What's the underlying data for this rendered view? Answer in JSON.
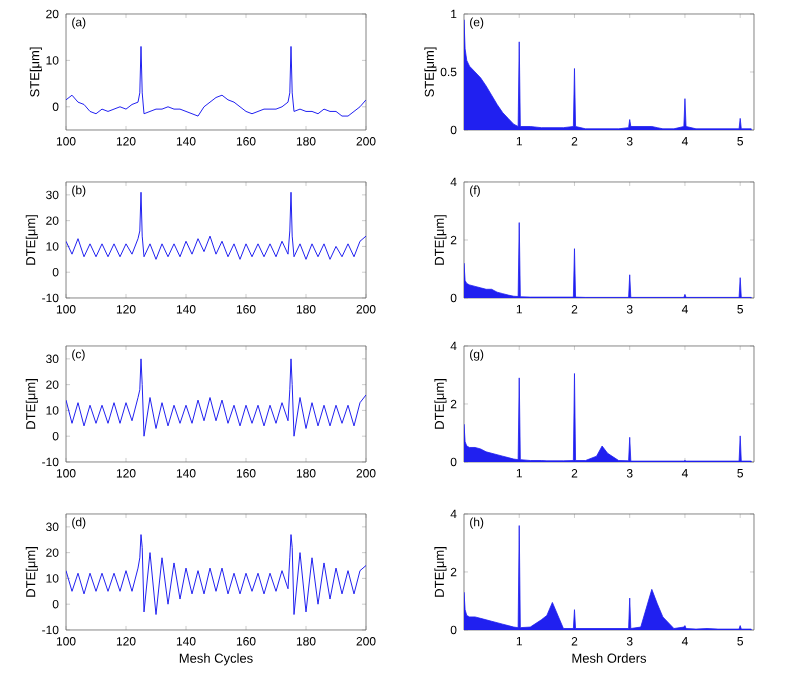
{
  "chart_data": [
    {
      "type": "line",
      "annotations": [
        "(a)"
      ],
      "ylabel": "STE[μm]",
      "color": "#2020f0",
      "xlim": [
        100,
        200
      ],
      "xticks": [
        100,
        120,
        140,
        160,
        180,
        200
      ],
      "ylim": [
        -5,
        20
      ],
      "yticks": [
        0,
        10,
        20
      ],
      "x": [
        100,
        102,
        104,
        106,
        108,
        110,
        112,
        114,
        116,
        118,
        120,
        122,
        124,
        124.6,
        125,
        125.4,
        126,
        128,
        130,
        132,
        134,
        136,
        138,
        140,
        142,
        144,
        146,
        148,
        150,
        152,
        154,
        156,
        158,
        160,
        162,
        164,
        166,
        168,
        170,
        172,
        174,
        174.6,
        175,
        175.4,
        176,
        178,
        180,
        182,
        184,
        186,
        188,
        190,
        192,
        194,
        196,
        198,
        200
      ],
      "values": [
        1.5,
        2.5,
        1,
        0.5,
        -1,
        -1.5,
        -0.5,
        -1,
        -0.5,
        0,
        -0.5,
        0.5,
        1,
        3,
        13,
        3,
        -1.5,
        -1,
        -0.5,
        -0.5,
        0,
        -0.5,
        -0.5,
        -1,
        -1.5,
        -2,
        0,
        1,
        2,
        2.5,
        1.5,
        1,
        0,
        -1,
        -1.5,
        -1,
        -0.5,
        -0.5,
        -0.5,
        0,
        1,
        3,
        13,
        3,
        -1,
        -0.5,
        -1,
        -1,
        -1.5,
        -0.5,
        -1,
        -1,
        -2,
        -2,
        -1,
        0,
        1.5
      ]
    },
    {
      "type": "line",
      "annotations": [
        "(b)"
      ],
      "ylabel": "DTE[μm]",
      "color": "#2020f0",
      "xlim": [
        100,
        200
      ],
      "xticks": [
        100,
        120,
        140,
        160,
        180,
        200
      ],
      "ylim": [
        -10,
        35
      ],
      "yticks": [
        -10,
        0,
        10,
        20,
        30
      ],
      "x": [
        100,
        102,
        104,
        106,
        108,
        110,
        112,
        114,
        116,
        118,
        120,
        122,
        124,
        124.6,
        125,
        125.4,
        126,
        128,
        130,
        132,
        134,
        136,
        138,
        140,
        142,
        144,
        146,
        148,
        150,
        152,
        154,
        156,
        158,
        160,
        162,
        164,
        166,
        168,
        170,
        172,
        174,
        174.6,
        175,
        175.4,
        176,
        178,
        180,
        182,
        184,
        186,
        188,
        190,
        192,
        194,
        196,
        198,
        200
      ],
      "values": [
        12,
        7,
        13,
        6,
        11,
        6,
        11,
        6,
        11,
        6,
        11,
        7,
        13,
        16,
        31,
        14,
        6,
        11,
        5,
        11,
        6,
        11,
        6,
        12,
        7,
        13,
        8,
        14,
        7,
        12,
        6,
        11,
        5,
        11,
        6,
        11,
        6,
        11,
        6,
        12,
        7,
        16,
        31,
        14,
        6,
        11,
        5,
        11,
        6,
        11,
        5,
        10,
        6,
        11,
        6,
        12,
        14
      ]
    },
    {
      "type": "line",
      "annotations": [
        "(c)"
      ],
      "ylabel": "DTE[μm]",
      "color": "#2020f0",
      "xlim": [
        100,
        200
      ],
      "xticks": [
        100,
        120,
        140,
        160,
        180,
        200
      ],
      "ylim": [
        -10,
        35
      ],
      "yticks": [
        -10,
        0,
        10,
        20,
        30
      ],
      "x": [
        100,
        102,
        104,
        106,
        108,
        110,
        112,
        114,
        116,
        118,
        120,
        122,
        124,
        124.6,
        125,
        125.4,
        126,
        128,
        130,
        132,
        134,
        136,
        138,
        140,
        142,
        144,
        146,
        148,
        150,
        152,
        154,
        156,
        158,
        160,
        162,
        164,
        166,
        168,
        170,
        172,
        174,
        174.6,
        175,
        175.4,
        176,
        178,
        180,
        182,
        184,
        186,
        188,
        190,
        192,
        194,
        196,
        198,
        200
      ],
      "values": [
        14,
        5,
        13,
        4,
        12,
        5,
        12,
        5,
        13,
        5,
        13,
        6,
        15,
        18,
        30,
        20,
        0,
        15,
        3,
        13,
        4,
        12,
        5,
        12,
        5,
        14,
        6,
        15,
        6,
        14,
        5,
        12,
        4,
        12,
        5,
        12,
        4,
        12,
        5,
        13,
        6,
        18,
        30,
        20,
        0,
        15,
        3,
        13,
        4,
        12,
        4,
        12,
        5,
        12,
        4,
        13,
        16
      ]
    },
    {
      "type": "line",
      "annotations": [
        "(d)"
      ],
      "ylabel": "DTE[μm]",
      "xlabel": "Mesh Cycles",
      "color": "#2020f0",
      "xlim": [
        100,
        200
      ],
      "xticks": [
        100,
        120,
        140,
        160,
        180,
        200
      ],
      "ylim": [
        -10,
        35
      ],
      "yticks": [
        -10,
        0,
        10,
        20,
        30
      ],
      "x": [
        100,
        102,
        104,
        106,
        108,
        110,
        112,
        114,
        116,
        118,
        120,
        122,
        124,
        124.6,
        125,
        125.4,
        126,
        128,
        130,
        132,
        134,
        136,
        138,
        140,
        142,
        144,
        146,
        148,
        150,
        152,
        154,
        156,
        158,
        160,
        162,
        164,
        166,
        168,
        170,
        172,
        174,
        174.6,
        175,
        175.4,
        176,
        178,
        180,
        182,
        184,
        186,
        188,
        190,
        192,
        194,
        196,
        198,
        200
      ],
      "values": [
        13,
        5,
        12,
        4,
        12,
        5,
        12,
        5,
        12,
        5,
        13,
        5,
        14,
        18,
        27,
        22,
        -3,
        20,
        -4,
        18,
        0,
        16,
        2,
        14,
        4,
        13,
        4,
        14,
        5,
        14,
        4,
        12,
        4,
        12,
        5,
        12,
        4,
        12,
        5,
        13,
        6,
        18,
        27,
        22,
        -4,
        20,
        -3,
        18,
        0,
        16,
        2,
        14,
        4,
        13,
        4,
        13,
        15
      ]
    },
    {
      "type": "area",
      "annotations": [
        "(e)"
      ],
      "ylabel": "STE[μm]",
      "color": "#2020f0",
      "xlim": [
        0,
        5.25
      ],
      "xticks": [
        1,
        2,
        3,
        4,
        5
      ],
      "ylim": [
        0,
        1
      ],
      "yticks": [
        0,
        0.5,
        1
      ],
      "x": [
        0,
        0.02,
        0.05,
        0.1,
        0.2,
        0.3,
        0.4,
        0.5,
        0.6,
        0.7,
        0.8,
        0.9,
        0.98,
        1,
        1.02,
        1.2,
        1.4,
        1.5,
        1.6,
        1.8,
        1.98,
        2,
        2.02,
        2.2,
        2.4,
        2.5,
        2.6,
        2.8,
        2.98,
        3,
        3.02,
        3.2,
        3.4,
        3.5,
        3.6,
        3.8,
        3.98,
        4,
        4.02,
        4.2,
        4.4,
        4.6,
        4.8,
        4.98,
        5,
        5.02,
        5.2
      ],
      "values": [
        0.95,
        0.7,
        0.6,
        0.55,
        0.5,
        0.45,
        0.38,
        0.3,
        0.22,
        0.15,
        0.1,
        0.05,
        0.03,
        0.76,
        0.03,
        0.03,
        0.02,
        0.02,
        0.02,
        0.02,
        0.03,
        0.53,
        0.03,
        0.01,
        0.01,
        0.01,
        0.01,
        0.01,
        0.02,
        0.09,
        0.03,
        0.03,
        0.03,
        0.02,
        0.01,
        0.01,
        0.03,
        0.27,
        0.03,
        0.01,
        0.01,
        0.01,
        0.01,
        0.01,
        0.1,
        0.01,
        0.01
      ]
    },
    {
      "type": "area",
      "annotations": [
        "(f)"
      ],
      "ylabel": "DTE[μm]",
      "color": "#2020f0",
      "xlim": [
        0,
        5.25
      ],
      "xticks": [
        1,
        2,
        3,
        4,
        5
      ],
      "ylim": [
        0,
        4
      ],
      "yticks": [
        0,
        2,
        4
      ],
      "x": [
        0,
        0.02,
        0.05,
        0.1,
        0.2,
        0.3,
        0.4,
        0.5,
        0.6,
        0.7,
        0.8,
        0.9,
        0.98,
        1,
        1.02,
        1.2,
        1.4,
        1.5,
        1.6,
        1.8,
        1.98,
        2,
        2.02,
        2.2,
        2.4,
        2.5,
        2.6,
        2.8,
        2.98,
        3,
        3.02,
        3.2,
        3.4,
        3.5,
        3.6,
        3.8,
        3.98,
        4,
        4.02,
        4.2,
        4.4,
        4.6,
        4.8,
        4.98,
        5,
        5.02,
        5.2
      ],
      "values": [
        1.2,
        0.6,
        0.5,
        0.45,
        0.4,
        0.35,
        0.3,
        0.3,
        0.2,
        0.15,
        0.1,
        0.06,
        0.05,
        2.6,
        0.04,
        0.03,
        0.03,
        0.03,
        0.03,
        0.03,
        0.03,
        1.7,
        0.03,
        0.02,
        0.02,
        0.02,
        0.02,
        0.02,
        0.02,
        0.8,
        0.02,
        0.02,
        0.02,
        0.02,
        0.02,
        0.02,
        0.02,
        0.12,
        0.02,
        0.02,
        0.02,
        0.02,
        0.02,
        0.02,
        0.7,
        0.02,
        0.02
      ]
    },
    {
      "type": "area",
      "annotations": [
        "(g)"
      ],
      "ylabel": "DTE[μm]",
      "color": "#2020f0",
      "xlim": [
        0,
        5.25
      ],
      "xticks": [
        1,
        2,
        3,
        4,
        5
      ],
      "ylim": [
        0,
        4
      ],
      "yticks": [
        0,
        2,
        4
      ],
      "x": [
        0,
        0.02,
        0.05,
        0.1,
        0.2,
        0.3,
        0.4,
        0.5,
        0.6,
        0.7,
        0.8,
        0.9,
        0.98,
        1,
        1.02,
        1.2,
        1.4,
        1.5,
        1.6,
        1.8,
        1.98,
        2,
        2.02,
        2.2,
        2.4,
        2.5,
        2.6,
        2.8,
        2.98,
        3,
        3.02,
        3.2,
        3.4,
        3.5,
        3.6,
        3.8,
        3.98,
        4,
        4.02,
        4.2,
        4.4,
        4.6,
        4.8,
        4.98,
        5,
        5.02,
        5.2
      ],
      "values": [
        1.3,
        0.7,
        0.55,
        0.5,
        0.5,
        0.45,
        0.35,
        0.3,
        0.25,
        0.2,
        0.15,
        0.1,
        0.08,
        2.9,
        0.08,
        0.05,
        0.05,
        0.04,
        0.04,
        0.04,
        0.05,
        3.05,
        0.05,
        0.05,
        0.2,
        0.55,
        0.3,
        0.05,
        0.04,
        0.85,
        0.03,
        0.03,
        0.03,
        0.03,
        0.03,
        0.03,
        0.03,
        0.05,
        0.03,
        0.03,
        0.03,
        0.03,
        0.03,
        0.03,
        0.9,
        0.03,
        0.03
      ]
    },
    {
      "type": "area",
      "annotations": [
        "(h)"
      ],
      "ylabel": "DTE[μm]",
      "xlabel": "Mesh Orders",
      "color": "#2020f0",
      "xlim": [
        0,
        5.25
      ],
      "xticks": [
        1,
        2,
        3,
        4,
        5
      ],
      "ylim": [
        0,
        4
      ],
      "yticks": [
        0,
        2,
        4
      ],
      "x": [
        0,
        0.02,
        0.05,
        0.1,
        0.2,
        0.3,
        0.4,
        0.5,
        0.6,
        0.7,
        0.8,
        0.9,
        0.98,
        1,
        1.02,
        1.2,
        1.4,
        1.5,
        1.6,
        1.8,
        1.98,
        2,
        2.02,
        2.2,
        2.4,
        2.5,
        2.6,
        2.8,
        2.98,
        3,
        3.02,
        3.2,
        3.4,
        3.5,
        3.6,
        3.8,
        3.98,
        4,
        4.02,
        4.2,
        4.4,
        4.6,
        4.8,
        4.98,
        5,
        5.02,
        5.2
      ],
      "values": [
        1.3,
        0.7,
        0.5,
        0.45,
        0.45,
        0.4,
        0.35,
        0.3,
        0.25,
        0.2,
        0.15,
        0.1,
        0.08,
        3.6,
        0.08,
        0.1,
        0.35,
        0.5,
        0.95,
        0.05,
        0.05,
        0.7,
        0.05,
        0.05,
        0.05,
        0.05,
        0.05,
        0.05,
        0.05,
        1.1,
        0.05,
        0.1,
        1.4,
        0.9,
        0.45,
        0.05,
        0.1,
        0.15,
        0.05,
        0.03,
        0.05,
        0.03,
        0.03,
        0.03,
        0.15,
        0.03,
        0.03
      ]
    }
  ]
}
